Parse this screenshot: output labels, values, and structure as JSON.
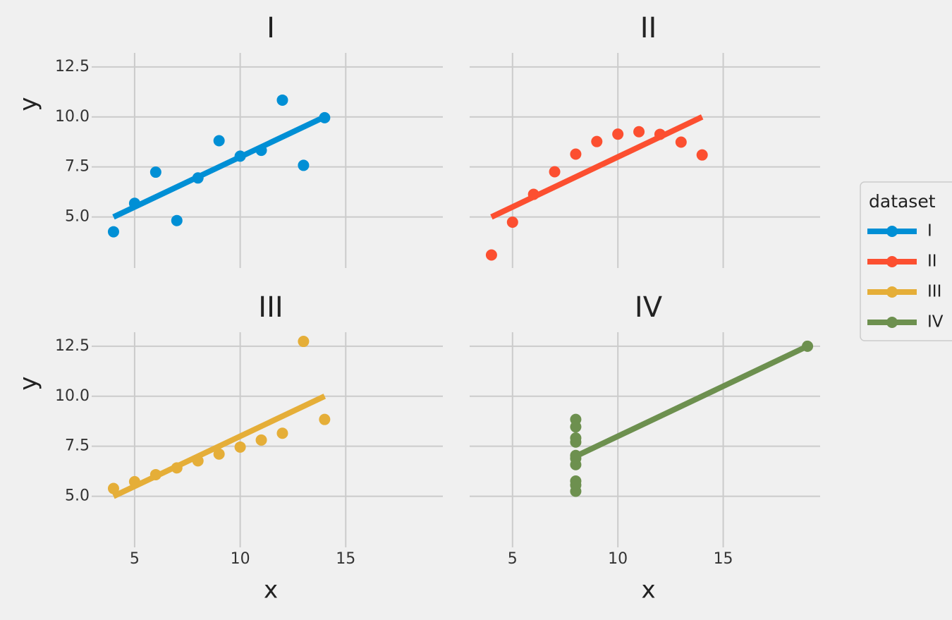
{
  "chart_data": [
    {
      "type": "scatter",
      "title": "I",
      "ylabel": "y",
      "show_xtick_labels": false,
      "show_ytick_labels": true,
      "xlim": [
        3.3,
        19.6
      ],
      "ylim": [
        2.8,
        13.2
      ],
      "xticks": [
        5,
        10,
        15
      ],
      "yticks": [
        {
          "value": 5,
          "label": "5.0"
        },
        7.5,
        {
          "value": 10,
          "label": "10.0"
        },
        12.5
      ],
      "grid": true,
      "series": [
        {
          "name": "I",
          "color": "#008fd5",
          "x": [
            10,
            8,
            13,
            9,
            11,
            14,
            6,
            4,
            12,
            7,
            5
          ],
          "values": [
            8.04,
            6.95,
            7.58,
            8.81,
            8.33,
            9.96,
            7.24,
            4.26,
            10.84,
            4.82,
            5.68
          ],
          "fit": {
            "x": [
              4,
              14
            ],
            "values": [
              5.0,
              10.0
            ]
          }
        }
      ]
    },
    {
      "type": "scatter",
      "title": "II",
      "show_xtick_labels": false,
      "show_ytick_labels": false,
      "xlim": [
        3.3,
        19.6
      ],
      "ylim": [
        2.8,
        13.2
      ],
      "xticks": [
        5,
        10,
        15
      ],
      "yticks": [
        {
          "value": 5,
          "label": "5.0"
        },
        7.5,
        {
          "value": 10,
          "label": "10.0"
        },
        12.5
      ],
      "grid": true,
      "series": [
        {
          "name": "II",
          "color": "#fc4f30",
          "x": [
            10,
            8,
            13,
            9,
            11,
            14,
            6,
            4,
            12,
            7,
            5
          ],
          "values": [
            9.14,
            8.14,
            8.74,
            8.77,
            9.26,
            8.1,
            6.13,
            3.1,
            9.13,
            7.26,
            4.74
          ],
          "fit": {
            "x": [
              4,
              14
            ],
            "values": [
              5.0,
              10.0
            ]
          }
        }
      ]
    },
    {
      "type": "scatter",
      "title": "III",
      "xlabel": "x",
      "ylabel": "y",
      "show_xtick_labels": true,
      "show_ytick_labels": true,
      "xlim": [
        3.3,
        19.6
      ],
      "ylim": [
        2.8,
        13.2
      ],
      "xticks": [
        5,
        10,
        15
      ],
      "yticks": [
        {
          "value": 5,
          "label": "5.0"
        },
        7.5,
        {
          "value": 10,
          "label": "10.0"
        },
        12.5
      ],
      "grid": true,
      "series": [
        {
          "name": "III",
          "color": "#e5ae38",
          "x": [
            10,
            8,
            13,
            9,
            11,
            14,
            6,
            4,
            12,
            7,
            5
          ],
          "values": [
            7.46,
            6.77,
            12.74,
            7.11,
            7.81,
            8.84,
            6.08,
            5.39,
            8.15,
            6.42,
            5.73
          ],
          "fit": {
            "x": [
              4,
              14
            ],
            "values": [
              5.0,
              10.0
            ]
          }
        }
      ]
    },
    {
      "type": "scatter",
      "title": "IV",
      "xlabel": "x",
      "show_xtick_labels": true,
      "show_ytick_labels": false,
      "xlim": [
        3.3,
        19.6
      ],
      "ylim": [
        2.8,
        13.2
      ],
      "xticks": [
        5,
        10,
        15
      ],
      "yticks": [
        {
          "value": 5,
          "label": "5.0"
        },
        7.5,
        {
          "value": 10,
          "label": "10.0"
        },
        12.5
      ],
      "grid": true,
      "series": [
        {
          "name": "IV",
          "color": "#6d904f",
          "x": [
            8,
            8,
            8,
            8,
            8,
            8,
            8,
            19,
            8,
            8,
            8
          ],
          "values": [
            6.58,
            5.76,
            7.71,
            8.84,
            8.47,
            7.04,
            5.25,
            12.5,
            5.56,
            7.91,
            6.89
          ],
          "fit": {
            "x": [
              8,
              19
            ],
            "values": [
              7.0,
              12.5
            ]
          }
        }
      ]
    }
  ],
  "legend": {
    "title": "dataset",
    "position": "right"
  }
}
